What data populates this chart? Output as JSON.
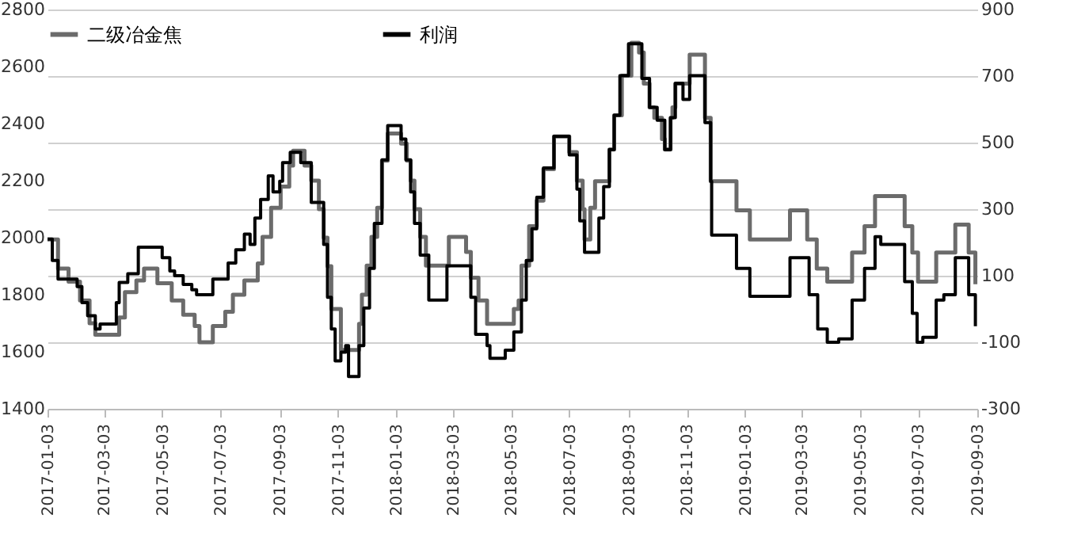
{
  "chart_data": {
    "type": "step",
    "legend": "top",
    "grid": true,
    "xlim": [
      "2017-01-03",
      "2019-09-03"
    ],
    "xticks": [
      "2017-01-03",
      "2017-03-03",
      "2017-05-03",
      "2017-07-03",
      "2017-09-03",
      "2017-11-03",
      "2018-01-03",
      "2018-03-03",
      "2018-05-03",
      "2018-07-03",
      "2018-09-03",
      "2018-11-03",
      "2019-01-03",
      "2019-03-03",
      "2019-05-03",
      "2019-07-03",
      "2019-09-03"
    ],
    "ylim": [
      1400,
      2800
    ],
    "yticks": [
      1400,
      1600,
      1800,
      2000,
      2200,
      2400,
      2600,
      2800
    ],
    "y2lim": [
      -300,
      900
    ],
    "y2ticks": [
      -300,
      -100,
      100,
      300,
      500,
      700,
      900
    ],
    "series": [
      {
        "name": "二级冶金焦",
        "color": "#6b6b6b",
        "axis": "y",
        "x": [
          "2017-01-03",
          "2017-01-14",
          "2017-01-25",
          "2017-02-06",
          "2017-02-16",
          "2017-02-22",
          "2017-03-19",
          "2017-03-25",
          "2017-04-06",
          "2017-04-14",
          "2017-04-28",
          "2017-05-13",
          "2017-05-25",
          "2017-06-06",
          "2017-06-11",
          "2017-06-25",
          "2017-07-08",
          "2017-07-16",
          "2017-07-28",
          "2017-08-11",
          "2017-08-16",
          "2017-08-25",
          "2017-09-04",
          "2017-09-13",
          "2017-09-17",
          "2017-09-29",
          "2017-10-06",
          "2017-10-14",
          "2017-10-19",
          "2017-10-23",
          "2017-10-27",
          "2017-11-06",
          "2017-11-25",
          "2017-11-28",
          "2017-12-03",
          "2017-12-08",
          "2017-12-14",
          "2017-12-19",
          "2017-12-25",
          "2018-01-08",
          "2018-01-14",
          "2018-01-18",
          "2018-01-22",
          "2018-01-28",
          "2018-02-03",
          "2018-02-27",
          "2018-03-17",
          "2018-03-22",
          "2018-03-30",
          "2018-04-08",
          "2018-05-06",
          "2018-05-11",
          "2018-05-14",
          "2018-05-22",
          "2018-05-30",
          "2018-06-06",
          "2018-06-17",
          "2018-07-03",
          "2018-07-11",
          "2018-07-17",
          "2018-07-19",
          "2018-07-25",
          "2018-07-30",
          "2018-08-14",
          "2018-08-19",
          "2018-08-27",
          "2018-09-06",
          "2018-09-14",
          "2018-09-19",
          "2018-09-25",
          "2018-09-30",
          "2018-10-08",
          "2018-10-11",
          "2018-10-17",
          "2018-10-19",
          "2018-10-22",
          "2018-11-06",
          "2018-11-22",
          "2018-11-28",
          "2018-12-25",
          "2019-01-08",
          "2019-02-19",
          "2019-03-09",
          "2019-03-19",
          "2019-03-30",
          "2019-04-25",
          "2019-05-08",
          "2019-05-19",
          "2019-06-19",
          "2019-06-27",
          "2019-07-03",
          "2019-07-22",
          "2019-08-11",
          "2019-08-25",
          "2019-09-01"
        ],
        "values": [
          1994,
          1892,
          1846,
          1780,
          1700,
          1660,
          1720,
          1809,
          1850,
          1892,
          1840,
          1780,
          1730,
          1690,
          1633,
          1690,
          1740,
          1800,
          1850,
          1910,
          2003,
          2105,
          2179,
          2253,
          2305,
          2253,
          2200,
          2100,
          2000,
          1900,
          1750,
          1606,
          1698,
          1800,
          1902,
          2003,
          2105,
          2270,
          2365,
          2330,
          2270,
          2200,
          2100,
          2003,
          1902,
          2003,
          1950,
          1860,
          1780,
          1698,
          1750,
          1780,
          1902,
          2040,
          2130,
          2240,
          2355,
          2300,
          2200,
          2100,
          1994,
          2105,
          2198,
          2309,
          2429,
          2568,
          2683,
          2649,
          2540,
          2457,
          2420,
          2346,
          2309,
          2420,
          2457,
          2540,
          2642,
          2420,
          2198,
          2096,
          1994,
          2096,
          1994,
          1892,
          1846,
          1948,
          2040,
          2146,
          2040,
          1948,
          1846,
          1948,
          2046,
          1948,
          1837
        ]
      },
      {
        "name": "利润",
        "color": "#000000",
        "axis": "y2",
        "x": [
          "2017-01-03",
          "2017-01-08",
          "2017-01-14",
          "2017-02-03",
          "2017-02-08",
          "2017-02-14",
          "2017-02-22",
          "2017-02-27",
          "2017-03-16",
          "2017-03-19",
          "2017-03-28",
          "2017-04-08",
          "2017-05-03",
          "2017-05-11",
          "2017-05-16",
          "2017-05-25",
          "2017-06-03",
          "2017-06-08",
          "2017-06-25",
          "2017-07-11",
          "2017-07-19",
          "2017-07-28",
          "2017-08-03",
          "2017-08-08",
          "2017-08-14",
          "2017-08-22",
          "2017-08-27",
          "2017-09-03",
          "2017-09-06",
          "2017-09-14",
          "2017-09-25",
          "2017-10-06",
          "2017-10-19",
          "2017-10-23",
          "2017-10-27",
          "2017-10-31",
          "2017-11-06",
          "2017-11-11",
          "2017-11-14",
          "2017-11-25",
          "2017-11-30",
          "2017-12-06",
          "2017-12-11",
          "2017-12-19",
          "2017-12-25",
          "2018-01-08",
          "2018-01-13",
          "2018-01-18",
          "2018-01-22",
          "2018-01-28",
          "2018-02-06",
          "2018-02-25",
          "2018-03-22",
          "2018-03-27",
          "2018-04-08",
          "2018-04-11",
          "2018-04-27",
          "2018-05-06",
          "2018-05-14",
          "2018-05-19",
          "2018-05-25",
          "2018-05-30",
          "2018-06-06",
          "2018-06-17",
          "2018-07-03",
          "2018-07-11",
          "2018-07-14",
          "2018-07-19",
          "2018-08-03",
          "2018-08-08",
          "2018-08-14",
          "2018-08-19",
          "2018-08-25",
          "2018-09-03",
          "2018-09-17",
          "2018-09-25",
          "2018-10-03",
          "2018-10-11",
          "2018-10-17",
          "2018-10-22",
          "2018-10-30",
          "2018-11-06",
          "2018-11-22",
          "2018-11-28",
          "2018-11-29",
          "2018-12-25",
          "2019-01-08",
          "2019-02-19",
          "2019-03-11",
          "2019-03-20",
          "2019-03-30",
          "2019-04-11",
          "2019-04-25",
          "2019-05-08",
          "2019-05-19",
          "2019-05-25",
          "2019-06-19",
          "2019-06-27",
          "2019-07-02",
          "2019-07-08",
          "2019-07-22",
          "2019-07-30",
          "2019-08-11",
          "2019-08-25",
          "2019-09-01"
        ],
        "values": [
          210,
          146,
          90,
          67,
          19,
          -20,
          -60,
          -45,
          19,
          80,
          106,
          186,
          154,
          114,
          100,
          74,
          58,
          43,
          90,
          138,
          178,
          225,
          194,
          273,
          329,
          400,
          352,
          384,
          440,
          471,
          440,
          320,
          194,
          35,
          -60,
          -156,
          -130,
          -110,
          -203,
          -110,
          3,
          122,
          257,
          448,
          551,
          511,
          448,
          352,
          257,
          162,
          27,
          130,
          35,
          -76,
          -110,
          -148,
          -124,
          -69,
          27,
          146,
          241,
          336,
          424,
          519,
          463,
          360,
          265,
          170,
          273,
          368,
          479,
          582,
          701,
          797,
          693,
          606,
          567,
          479,
          575,
          678,
          630,
          701,
          560,
          384,
          222,
          122,
          38,
          154,
          43,
          -60,
          -100,
          -90,
          27,
          122,
          217,
          194,
          82,
          -13,
          -100,
          -85,
          27,
          43,
          154,
          43,
          -52
        ]
      }
    ]
  }
}
